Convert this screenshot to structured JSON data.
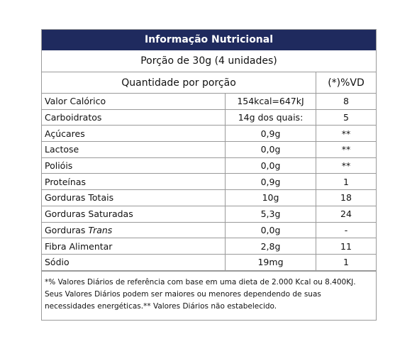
{
  "header": {
    "title": "Informação Nutricional",
    "portion": "Porção de 30g (4 unidades)"
  },
  "table": {
    "columns": [
      "Quantidade por porção",
      "(*)%VD"
    ],
    "rows": [
      {
        "label": "Valor Calórico",
        "quantity": "154kcal=647kJ",
        "vd": "8"
      },
      {
        "label": "Carboidratos",
        "quantity": "14g dos quais:",
        "vd": "5"
      },
      {
        "label": "Açúcares",
        "quantity": "0,9g",
        "vd": "**"
      },
      {
        "label": "Lactose",
        "quantity": "0,0g",
        "vd": "**"
      },
      {
        "label": "Polióis",
        "quantity": "0,0g",
        "vd": "**"
      },
      {
        "label": "Proteínas",
        "quantity": "0,9g",
        "vd": "1"
      },
      {
        "label": "Gorduras Totais",
        "quantity": "10g",
        "vd": "18"
      },
      {
        "label": "Gorduras Saturadas",
        "quantity": "5,3g",
        "vd": "24"
      },
      {
        "label": "Gorduras",
        "label_italic": "Trans",
        "quantity": "0,0g",
        "vd": "-"
      },
      {
        "label": "Fibra Alimentar",
        "quantity": "2,8g",
        "vd": "11"
      },
      {
        "label": "Sódio",
        "quantity": "19mg",
        "vd": "1"
      }
    ]
  },
  "footnote": "*% Valores Diários de referência com base em uma dieta de 2.000 Kcal ou 8.400KJ. Seus Valores Diários podem ser maiores ou menores dependendo de suas necessidades energéticas.** Valores Diários não estabelecido."
}
